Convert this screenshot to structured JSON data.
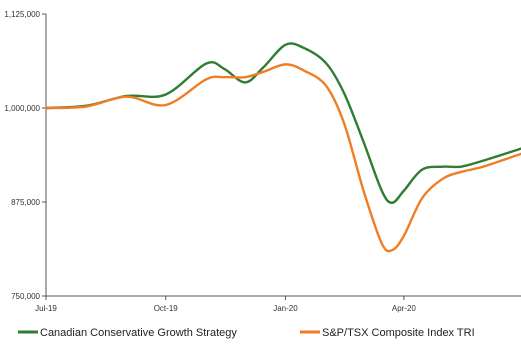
{
  "chart_data": {
    "type": "line",
    "title": "",
    "xlabel": "",
    "ylabel": "",
    "x_ticks": [
      "Jul-19",
      "Oct-19",
      "Jan-20",
      "Apr-20"
    ],
    "y_ticks": [
      "750,000",
      "875,000",
      "1,000,000",
      "1,125,000"
    ],
    "ylim": [
      750000,
      1125000
    ],
    "xlim": [
      "2019-07-01",
      "2020-06-30"
    ],
    "grid": false,
    "legend_position": "bottom",
    "series": [
      {
        "name": "Canadian Conservative Growth Strategy",
        "color": "#2e7d32",
        "points": [
          [
            "2019-07-01",
            1000000
          ],
          [
            "2019-08-01",
            1003000
          ],
          [
            "2019-09-01",
            1016000
          ],
          [
            "2019-10-01",
            1018000
          ],
          [
            "2019-11-01",
            1059000
          ],
          [
            "2019-11-15",
            1052000
          ],
          [
            "2019-12-01",
            1034000
          ],
          [
            "2019-12-15",
            1054000
          ],
          [
            "2020-01-01",
            1084000
          ],
          [
            "2020-01-15",
            1080000
          ],
          [
            "2020-02-01",
            1060000
          ],
          [
            "2020-02-15",
            1020000
          ],
          [
            "2020-03-01",
            955000
          ],
          [
            "2020-03-15",
            890000
          ],
          [
            "2020-03-23",
            874000
          ],
          [
            "2020-04-01",
            890000
          ],
          [
            "2020-04-15",
            918000
          ],
          [
            "2020-05-01",
            922000
          ],
          [
            "2020-05-15",
            922000
          ],
          [
            "2020-06-01",
            930000
          ],
          [
            "2020-06-30",
            946000
          ]
        ]
      },
      {
        "name": "S&P/TSX Composite Index TRI",
        "color": "#f07c24",
        "points": [
          [
            "2019-07-01",
            1000000
          ],
          [
            "2019-08-01",
            1002000
          ],
          [
            "2019-09-01",
            1015000
          ],
          [
            "2019-10-01",
            1004000
          ],
          [
            "2019-11-01",
            1038000
          ],
          [
            "2019-11-15",
            1041000
          ],
          [
            "2019-12-01",
            1041000
          ],
          [
            "2019-12-15",
            1048000
          ],
          [
            "2020-01-01",
            1058000
          ],
          [
            "2020-01-15",
            1050000
          ],
          [
            "2020-02-01",
            1030000
          ],
          [
            "2020-02-15",
            980000
          ],
          [
            "2020-03-01",
            890000
          ],
          [
            "2020-03-15",
            820000
          ],
          [
            "2020-03-23",
            811000
          ],
          [
            "2020-04-01",
            830000
          ],
          [
            "2020-04-15",
            880000
          ],
          [
            "2020-05-01",
            906000
          ],
          [
            "2020-05-15",
            915000
          ],
          [
            "2020-06-01",
            922000
          ],
          [
            "2020-06-30",
            939000
          ]
        ]
      }
    ]
  }
}
